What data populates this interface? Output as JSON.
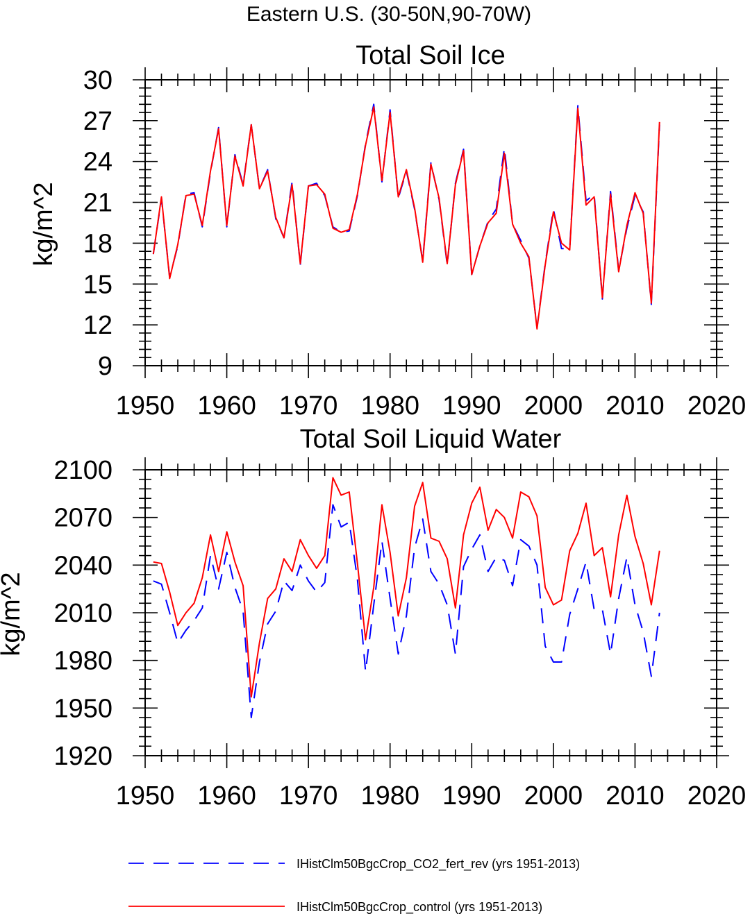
{
  "figure": {
    "title": "Eastern U.S. (30-50N,90-70W)"
  },
  "legend": [
    {
      "label": "IHistClm50BgcCrop_CO2_fert_rev (yrs 1951-2013)",
      "color": "#0000ff",
      "style": "dashed"
    },
    {
      "label": "IHistClm50BgcCrop_control (yrs 1951-2013)",
      "color": "#ff0000",
      "style": "solid"
    }
  ],
  "chart_data": [
    {
      "type": "line",
      "title": "Total Soil Ice",
      "xlabel": "",
      "ylabel": "kg/m^2",
      "xlim": [
        1950,
        2020
      ],
      "ylim": [
        9,
        30
      ],
      "xticks": [
        "1950",
        "1960",
        "1970",
        "1980",
        "1990",
        "2000",
        "2010",
        "2020"
      ],
      "yticks": [
        "9",
        "12",
        "15",
        "18",
        "21",
        "24",
        "27",
        "30"
      ],
      "grid": false,
      "x": [
        1951,
        1952,
        1953,
        1954,
        1955,
        1956,
        1957,
        1958,
        1959,
        1960,
        1961,
        1962,
        1963,
        1964,
        1965,
        1966,
        1967,
        1968,
        1969,
        1970,
        1971,
        1972,
        1973,
        1974,
        1975,
        1976,
        1977,
        1978,
        1979,
        1980,
        1981,
        1982,
        1983,
        1984,
        1985,
        1986,
        1987,
        1988,
        1989,
        1990,
        1991,
        1992,
        1993,
        1994,
        1995,
        1996,
        1997,
        1998,
        1999,
        2000,
        2001,
        2002,
        2003,
        2004,
        2005,
        2006,
        2007,
        2008,
        2009,
        2010,
        2011,
        2012,
        2013
      ],
      "series": [
        {
          "name": "IHistClm50BgcCrop_CO2_fert_rev (yrs 1951-2013)",
          "color": "#0000ff",
          "style": "dashed",
          "values": [
            17.2,
            21.3,
            15.5,
            17.8,
            21.6,
            21.7,
            19.2,
            23.2,
            26.5,
            19.2,
            24.5,
            22.3,
            26.7,
            22.0,
            23.4,
            19.8,
            18.4,
            22.5,
            16.4,
            22.2,
            22.4,
            21.5,
            19.2,
            18.8,
            18.9,
            21.5,
            25.3,
            28.2,
            22.5,
            27.8,
            21.3,
            23.3,
            20.5,
            16.7,
            23.9,
            21.2,
            16.4,
            22.4,
            24.9,
            15.7,
            17.8,
            19.6,
            20.5,
            25.0,
            19.4,
            18.2,
            16.9,
            11.8,
            16.5,
            20.5,
            17.6,
            17.6,
            28.1,
            21.1,
            21.6,
            13.9,
            21.8,
            16.0,
            19.1,
            21.5,
            20.3,
            13.5,
            26.7
          ]
        },
        {
          "name": "IHistClm50BgcCrop_control (yrs 1951-2013)",
          "color": "#ff0000",
          "style": "solid",
          "values": [
            17.2,
            21.4,
            15.4,
            17.9,
            21.5,
            21.6,
            19.3,
            23.3,
            26.4,
            19.3,
            24.4,
            22.2,
            26.7,
            22.0,
            23.3,
            19.9,
            18.4,
            22.3,
            16.5,
            22.2,
            22.3,
            21.6,
            19.1,
            18.8,
            19.0,
            21.6,
            25.2,
            28.0,
            22.6,
            27.6,
            21.4,
            23.4,
            20.6,
            16.6,
            23.8,
            21.3,
            16.5,
            22.3,
            24.8,
            15.7,
            17.8,
            19.5,
            20.2,
            24.6,
            19.4,
            18.0,
            17.0,
            11.7,
            16.4,
            20.3,
            18.0,
            17.5,
            27.9,
            20.8,
            21.4,
            14.0,
            21.6,
            15.9,
            19.3,
            21.7,
            20.2,
            13.6,
            26.9
          ]
        }
      ]
    },
    {
      "type": "line",
      "title": "Total Soil Liquid Water",
      "xlabel": "",
      "ylabel": "kg/m^2",
      "xlim": [
        1950,
        2020
      ],
      "ylim": [
        1920,
        2100
      ],
      "xticks": [
        "1950",
        "1960",
        "1970",
        "1980",
        "1990",
        "2000",
        "2010",
        "2020"
      ],
      "yticks": [
        "1920",
        "1950",
        "1980",
        "2010",
        "2040",
        "2070",
        "2100"
      ],
      "grid": false,
      "x": [
        1951,
        1952,
        1953,
        1954,
        1955,
        1956,
        1957,
        1958,
        1959,
        1960,
        1961,
        1962,
        1963,
        1964,
        1965,
        1966,
        1967,
        1968,
        1969,
        1970,
        1971,
        1972,
        1973,
        1974,
        1975,
        1976,
        1977,
        1978,
        1979,
        1980,
        1981,
        1982,
        1983,
        1984,
        1985,
        1986,
        1987,
        1988,
        1989,
        1990,
        1991,
        1992,
        1993,
        1994,
        1995,
        1996,
        1997,
        1998,
        1999,
        2000,
        2001,
        2002,
        2003,
        2004,
        2005,
        2006,
        2007,
        2008,
        2009,
        2010,
        2011,
        2012,
        2013
      ],
      "series": [
        {
          "name": "IHistClm50BgcCrop_CO2_fert_rev (yrs 1951-2013)",
          "color": "#0000ff",
          "style": "dashed",
          "values": [
            2030,
            2028,
            2010,
            1991,
            1999,
            2005,
            2013,
            2046,
            2025,
            2048,
            2026,
            2011,
            1944,
            1979,
            2003,
            2011,
            2030,
            2024,
            2040,
            2030,
            2023,
            2029,
            2078,
            2064,
            2067,
            2031,
            1973,
            2015,
            2055,
            2019,
            1984,
            2008,
            2051,
            2069,
            2036,
            2028,
            2015,
            1984,
            2039,
            2050,
            2059,
            2036,
            2045,
            2043,
            2027,
            2056,
            2052,
            2040,
            1989,
            1979,
            1979,
            2009,
            2025,
            2042,
            2012,
            2012,
            1984,
            2019,
            2045,
            2015,
            1998,
            1970,
            2010
          ]
        },
        {
          "name": "IHistClm50BgcCrop_control (yrs 1951-2013)",
          "color": "#ff0000",
          "style": "solid",
          "values": [
            2042,
            2041,
            2023,
            2002,
            2010,
            2016,
            2032,
            2059,
            2036,
            2061,
            2042,
            2027,
            1957,
            1991,
            2019,
            2025,
            2044,
            2036,
            2056,
            2046,
            2038,
            2046,
            2095,
            2084,
            2086,
            2041,
            1993,
            2026,
            2078,
            2048,
            2008,
            2032,
            2077,
            2092,
            2057,
            2055,
            2044,
            2013,
            2059,
            2079,
            2089,
            2062,
            2075,
            2070,
            2057,
            2086,
            2083,
            2071,
            2026,
            2015,
            2018,
            2049,
            2060,
            2079,
            2046,
            2051,
            2020,
            2059,
            2084,
            2058,
            2041,
            2015,
            2049
          ]
        }
      ]
    }
  ]
}
